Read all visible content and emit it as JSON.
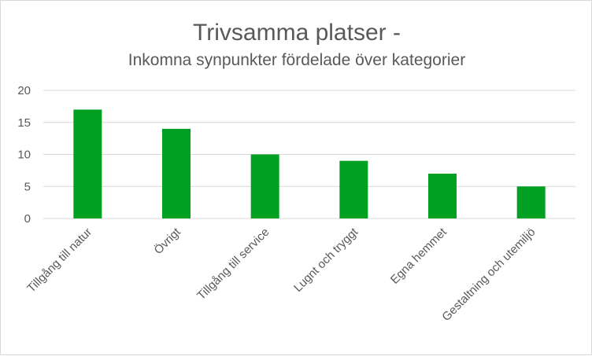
{
  "chart_data": {
    "type": "bar",
    "title": "Trivsamma platser -",
    "subtitle": "Inkomna synpunkter fördelade över kategorier",
    "categories": [
      "Tillgång till natur",
      "Övrigt",
      "Tillgång till service",
      "Lugnt och tryggt",
      "Egna hemmet",
      "Gestaltning och utemiljö"
    ],
    "values": [
      17,
      14,
      10,
      9,
      7,
      5
    ],
    "ylim": [
      0,
      20
    ],
    "yticks": [
      0,
      5,
      10,
      15,
      20
    ],
    "grid": true,
    "legend": "none",
    "bar_color": "#00a023",
    "xlabel": "",
    "ylabel": ""
  }
}
